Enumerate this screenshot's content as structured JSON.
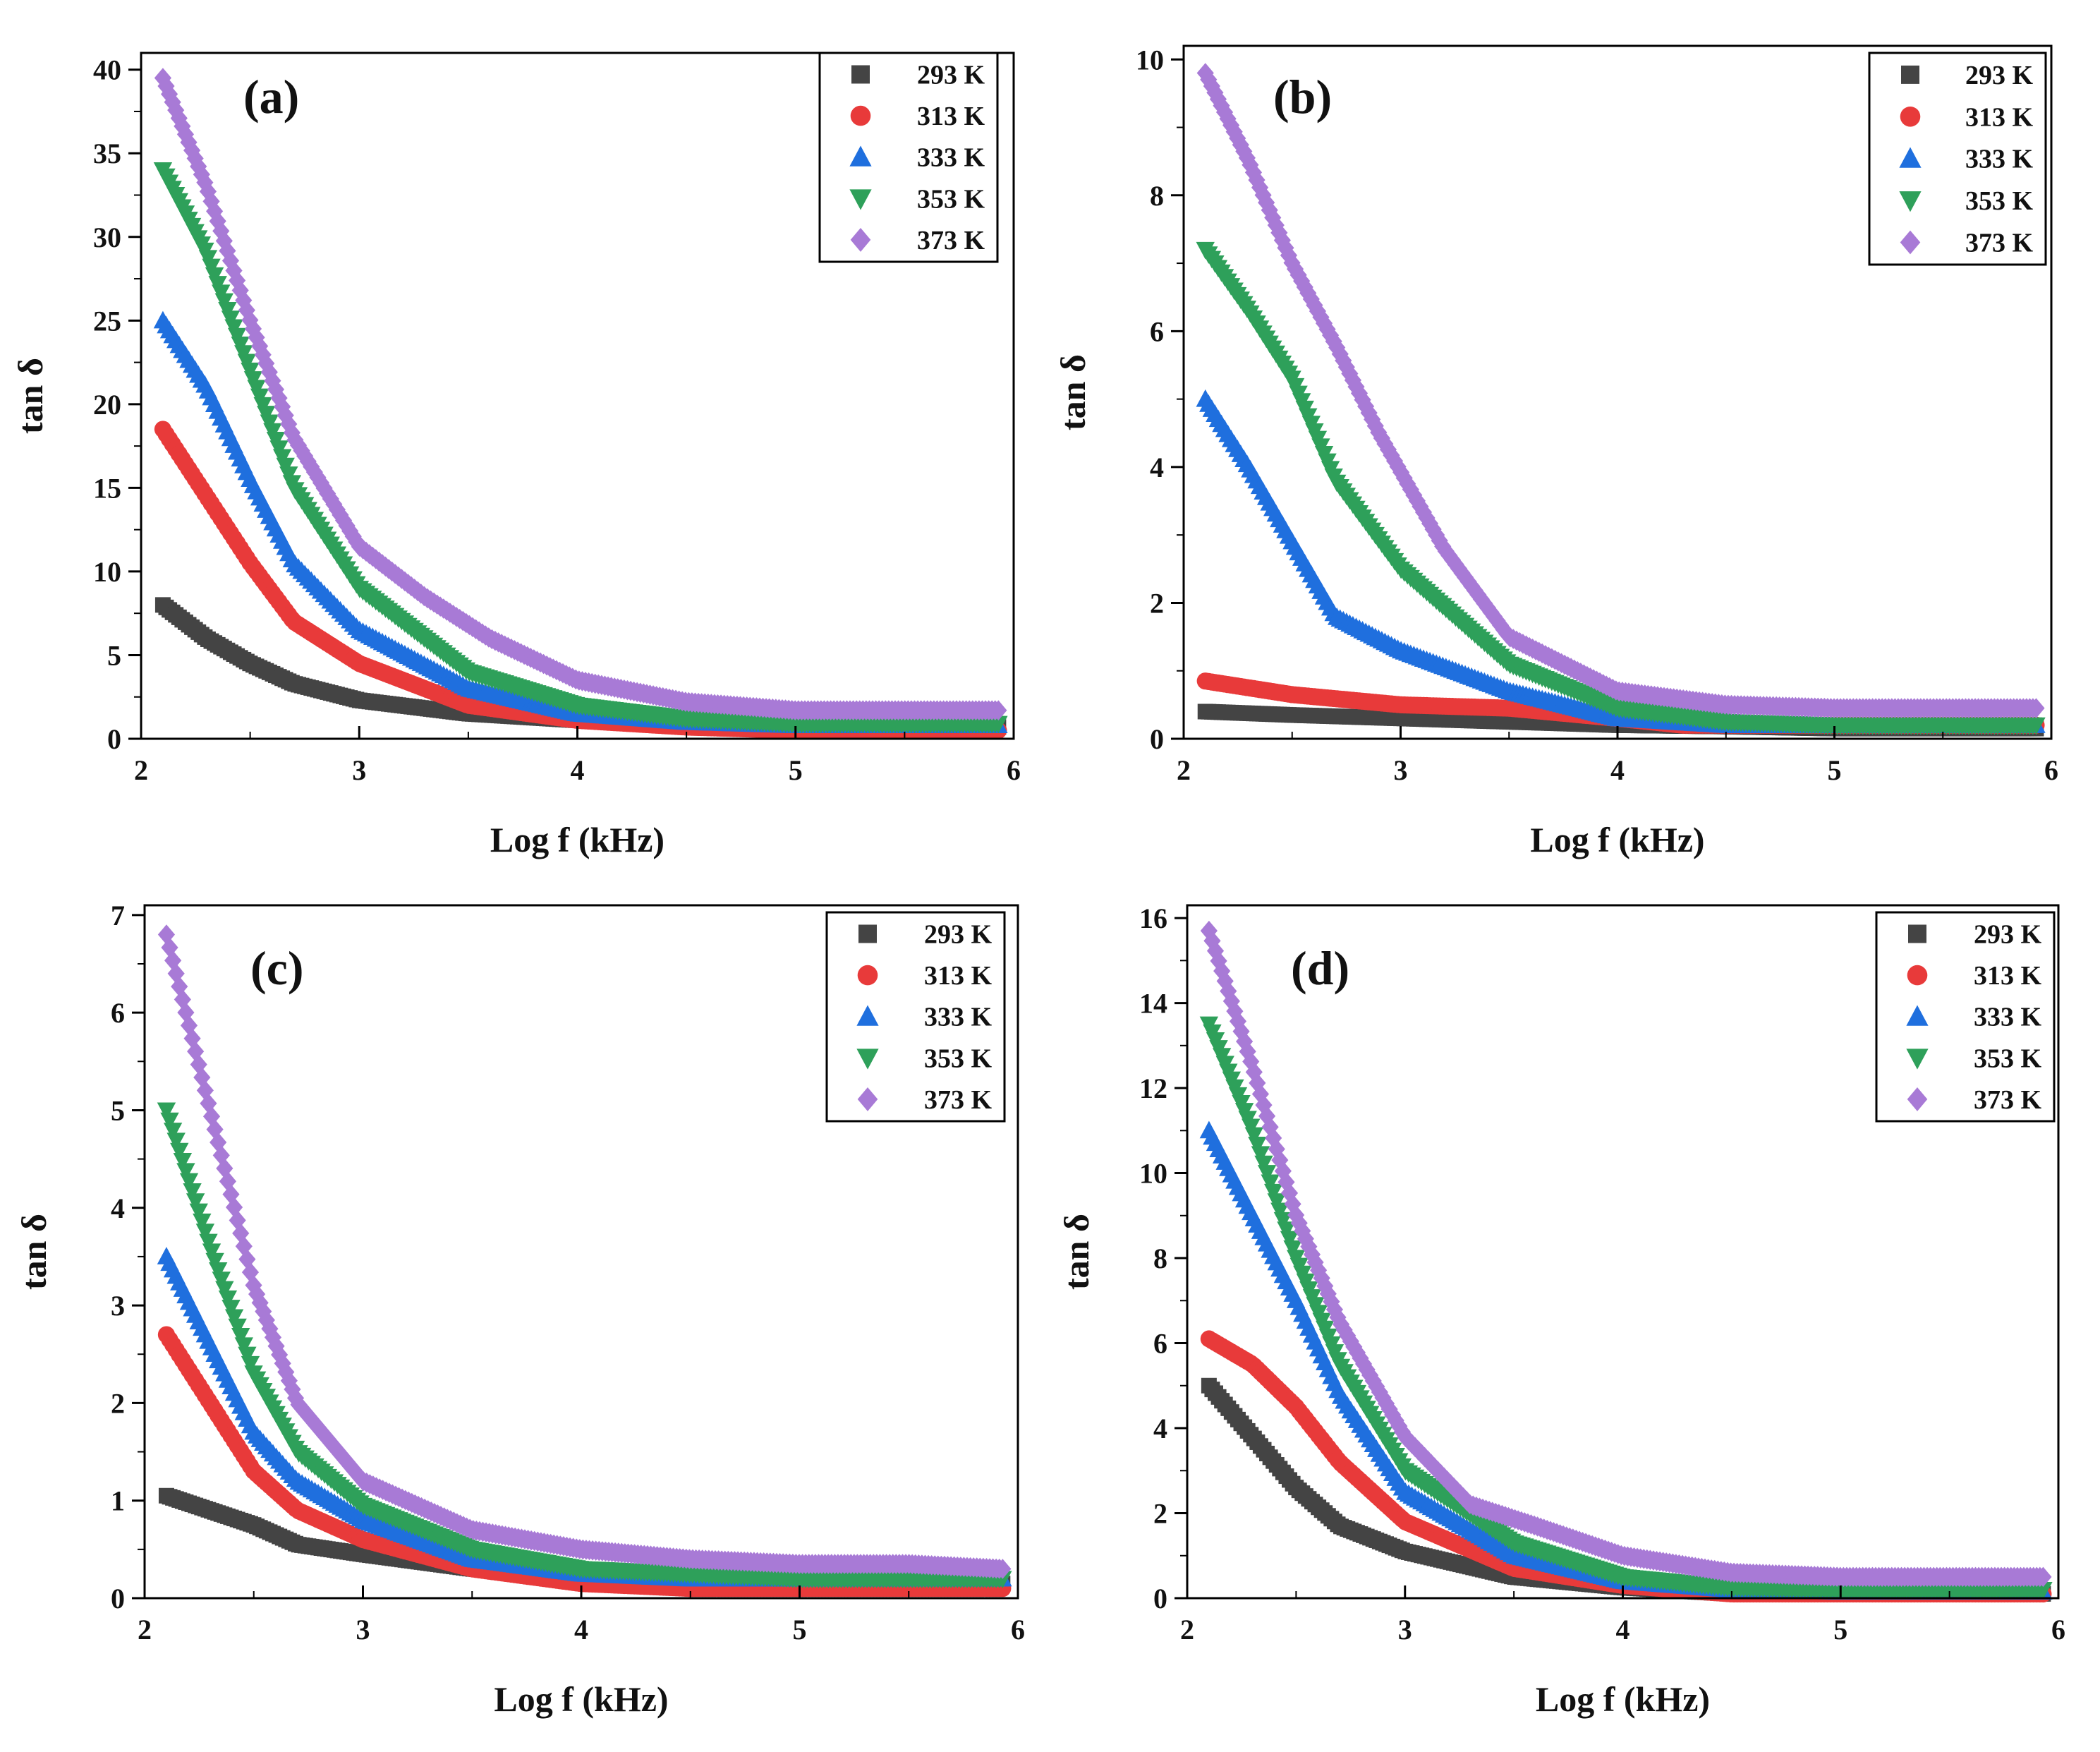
{
  "figure": {
    "panels": [
      {
        "label": "(a)",
        "chart_data": {
          "type": "scatter",
          "xlabel": "Log f (kHz)",
          "ylabel": "tan δ",
          "xlim": [
            2,
            6
          ],
          "ylim": [
            0,
            41
          ],
          "xticks": [
            2,
            3,
            4,
            5,
            6
          ],
          "yticks": [
            0,
            5,
            10,
            15,
            20,
            25,
            30,
            35,
            40
          ],
          "legend_position": "top-right",
          "series": [
            {
              "name": "293 K",
              "color": "#444444",
              "marker": "square",
              "x": [
                2.1,
                2.3,
                2.5,
                2.7,
                3.0,
                3.5,
                4.0,
                4.5,
                5.0,
                5.5,
                5.93
              ],
              "y": [
                8,
                6,
                4.5,
                3.3,
                2.3,
                1.5,
                1.1,
                0.9,
                0.8,
                0.7,
                0.7
              ]
            },
            {
              "name": "313 K",
              "color": "#e83a3a",
              "marker": "circle",
              "x": [
                2.1,
                2.3,
                2.5,
                2.7,
                3.0,
                3.5,
                4.0,
                4.5,
                5.0,
                5.5,
                5.93
              ],
              "y": [
                18.5,
                14.5,
                10.5,
                7,
                4.5,
                2,
                1.1,
                0.7,
                0.5,
                0.5,
                0.5
              ]
            },
            {
              "name": "333 K",
              "color": "#1f6fde",
              "marker": "triangle-up",
              "x": [
                2.1,
                2.3,
                2.5,
                2.7,
                3.0,
                3.5,
                4.0,
                4.5,
                5.0,
                5.5,
                5.93
              ],
              "y": [
                25,
                21,
                15.5,
                10.5,
                6.5,
                3,
                1.5,
                1,
                0.8,
                0.8,
                0.8
              ]
            },
            {
              "name": "353 K",
              "color": "#2ea05a",
              "marker": "triangle-down",
              "x": [
                2.1,
                2.3,
                2.5,
                2.7,
                3.0,
                3.5,
                4.0,
                4.5,
                5.0,
                5.5,
                5.93
              ],
              "y": [
                34,
                29,
                22,
                15,
                9,
                4,
                2,
                1.2,
                0.9,
                0.9,
                0.9
              ]
            },
            {
              "name": "373 K",
              "color": "#a87ad6",
              "marker": "diamond",
              "x": [
                2.1,
                2.3,
                2.5,
                2.7,
                3.0,
                3.3,
                3.6,
                4.0,
                4.5,
                5.0,
                5.5,
                5.93
              ],
              "y": [
                39.5,
                33,
                25,
                18,
                11.5,
                8.5,
                6,
                3.5,
                2.2,
                1.7,
                1.7,
                1.7
              ]
            }
          ]
        }
      },
      {
        "label": "(b)",
        "chart_data": {
          "type": "scatter",
          "xlabel": "Log f (kHz)",
          "ylabel": "tan δ",
          "xlim": [
            2,
            6
          ],
          "ylim": [
            0,
            10.2
          ],
          "xticks": [
            2,
            3,
            4,
            5,
            6
          ],
          "yticks": [
            0,
            2,
            4,
            6,
            8,
            10
          ],
          "legend_position": "top-right",
          "series": [
            {
              "name": "293 K",
              "color": "#444444",
              "marker": "square",
              "x": [
                2.1,
                2.5,
                3.0,
                3.5,
                4.0,
                4.5,
                5.0,
                5.5,
                5.93
              ],
              "y": [
                0.4,
                0.35,
                0.3,
                0.25,
                0.2,
                0.18,
                0.15,
                0.15,
                0.15
              ]
            },
            {
              "name": "313 K",
              "color": "#e83a3a",
              "marker": "circle",
              "x": [
                2.1,
                2.5,
                3.0,
                3.5,
                4.0,
                4.3,
                4.6,
                5.0,
                5.5,
                5.93
              ],
              "y": [
                0.85,
                0.65,
                0.5,
                0.45,
                0.3,
                0.2,
                0.2,
                0.2,
                0.2,
                0.2
              ]
            },
            {
              "name": "333 K",
              "color": "#1f6fde",
              "marker": "triangle-up",
              "x": [
                2.1,
                2.3,
                2.5,
                2.7,
                3.0,
                3.5,
                4.0,
                4.5,
                5.0,
                5.5,
                5.93
              ],
              "y": [
                5,
                4,
                2.9,
                1.8,
                1.3,
                0.7,
                0.3,
                0.2,
                0.2,
                0.2,
                0.2
              ]
            },
            {
              "name": "353 K",
              "color": "#2ea05a",
              "marker": "triangle-down",
              "x": [
                2.1,
                2.3,
                2.5,
                2.7,
                3.0,
                3.5,
                4.0,
                4.5,
                5.0,
                5.5,
                5.93
              ],
              "y": [
                7.2,
                6.3,
                5.3,
                3.8,
                2.5,
                1.1,
                0.45,
                0.25,
                0.2,
                0.2,
                0.2
              ]
            },
            {
              "name": "373 K",
              "color": "#a87ad6",
              "marker": "diamond",
              "x": [
                2.1,
                2.3,
                2.5,
                2.7,
                2.9,
                3.2,
                3.5,
                4.0,
                4.5,
                5.0,
                5.5,
                5.93
              ],
              "y": [
                9.8,
                8.5,
                7,
                5.8,
                4.5,
                2.8,
                1.5,
                0.7,
                0.5,
                0.45,
                0.45,
                0.45
              ]
            }
          ]
        }
      },
      {
        "label": "(c)",
        "chart_data": {
          "type": "scatter",
          "xlabel": "Log f (kHz)",
          "ylabel": "tan δ",
          "xlim": [
            2,
            6
          ],
          "ylim": [
            0,
            7.1
          ],
          "xticks": [
            2,
            3,
            4,
            5,
            6
          ],
          "yticks": [
            0,
            1,
            2,
            3,
            4,
            5,
            6,
            7
          ],
          "legend_position": "top-right",
          "series": [
            {
              "name": "293 K",
              "color": "#444444",
              "marker": "square",
              "x": [
                2.1,
                2.3,
                2.5,
                2.7,
                3.0,
                3.5,
                4.0,
                4.5,
                5.0,
                5.5,
                5.93
              ],
              "y": [
                1.05,
                0.9,
                0.75,
                0.55,
                0.45,
                0.3,
                0.2,
                0.15,
                0.15,
                0.15,
                0.15
              ]
            },
            {
              "name": "313 K",
              "color": "#e83a3a",
              "marker": "circle",
              "x": [
                2.1,
                2.3,
                2.5,
                2.7,
                3.0,
                3.5,
                4.0,
                4.5,
                5.0,
                5.5,
                5.93
              ],
              "y": [
                2.7,
                2,
                1.3,
                0.9,
                0.6,
                0.3,
                0.15,
                0.1,
                0.1,
                0.1,
                0.1
              ]
            },
            {
              "name": "333 K",
              "color": "#1f6fde",
              "marker": "triangle-up",
              "x": [
                2.1,
                2.3,
                2.5,
                2.7,
                3.0,
                3.5,
                4.0,
                4.5,
                5.0,
                5.5,
                5.93
              ],
              "y": [
                3.5,
                2.6,
                1.7,
                1.2,
                0.8,
                0.4,
                0.25,
                0.2,
                0.2,
                0.2,
                0.2
              ]
            },
            {
              "name": "353 K",
              "color": "#2ea05a",
              "marker": "triangle-down",
              "x": [
                2.1,
                2.3,
                2.5,
                2.7,
                3.0,
                3.5,
                4.0,
                4.5,
                5.0,
                5.5,
                5.93
              ],
              "y": [
                5,
                3.6,
                2.3,
                1.5,
                0.95,
                0.5,
                0.3,
                0.25,
                0.2,
                0.2,
                0.2
              ]
            },
            {
              "name": "373 K",
              "color": "#a87ad6",
              "marker": "diamond",
              "x": [
                2.1,
                2.3,
                2.5,
                2.7,
                3.0,
                3.5,
                4.0,
                4.5,
                5.0,
                5.5,
                5.93
              ],
              "y": [
                6.8,
                5,
                3.2,
                2,
                1.2,
                0.7,
                0.5,
                0.4,
                0.35,
                0.35,
                0.3
              ]
            }
          ]
        }
      },
      {
        "label": "(d)",
        "chart_data": {
          "type": "scatter",
          "xlabel": "Log f (kHz)",
          "ylabel": "tan δ",
          "xlim": [
            2,
            6
          ],
          "ylim": [
            0,
            16.3
          ],
          "xticks": [
            2,
            3,
            4,
            5,
            6
          ],
          "yticks": [
            0,
            2,
            4,
            6,
            8,
            10,
            12,
            14,
            16
          ],
          "legend_position": "top-right",
          "series": [
            {
              "name": "293 K",
              "color": "#444444",
              "marker": "square",
              "x": [
                2.1,
                2.3,
                2.5,
                2.7,
                3.0,
                3.5,
                4.0,
                4.5,
                5.0,
                5.5,
                5.93
              ],
              "y": [
                5,
                3.8,
                2.6,
                1.7,
                1.1,
                0.5,
                0.25,
                0.1,
                0.1,
                0.1,
                0.1
              ]
            },
            {
              "name": "313 K",
              "color": "#e83a3a",
              "marker": "circle",
              "x": [
                2.1,
                2.3,
                2.5,
                2.7,
                3.0,
                3.5,
                4.0,
                4.5,
                5.0,
                5.5,
                5.93
              ],
              "y": [
                6.1,
                5.5,
                4.5,
                3.2,
                1.8,
                0.7,
                0.3,
                0.1,
                0.1,
                0.1,
                0.1
              ]
            },
            {
              "name": "333 K",
              "color": "#1f6fde",
              "marker": "triangle-up",
              "x": [
                2.1,
                2.3,
                2.5,
                2.7,
                3.0,
                3.5,
                4.0,
                4.5,
                5.0,
                5.5,
                5.93
              ],
              "y": [
                11,
                9,
                7,
                4.8,
                2.5,
                1,
                0.4,
                0.2,
                0.15,
                0.15,
                0.15
              ]
            },
            {
              "name": "353 K",
              "color": "#2ea05a",
              "marker": "triangle-down",
              "x": [
                2.1,
                2.3,
                2.5,
                2.7,
                3.0,
                3.5,
                4.0,
                4.5,
                5.0,
                5.5,
                5.93
              ],
              "y": [
                13.5,
                11,
                8,
                5.5,
                3,
                1.3,
                0.5,
                0.25,
                0.2,
                0.2,
                0.2
              ]
            },
            {
              "name": "373 K",
              "color": "#a87ad6",
              "marker": "diamond",
              "x": [
                2.1,
                2.3,
                2.5,
                2.7,
                3.0,
                3.3,
                3.6,
                4.0,
                4.5,
                5.0,
                5.5,
                5.93
              ],
              "y": [
                15.7,
                12.5,
                9,
                6.5,
                3.8,
                2.2,
                1.7,
                1,
                0.6,
                0.5,
                0.5,
                0.5
              ]
            }
          ]
        }
      }
    ]
  }
}
